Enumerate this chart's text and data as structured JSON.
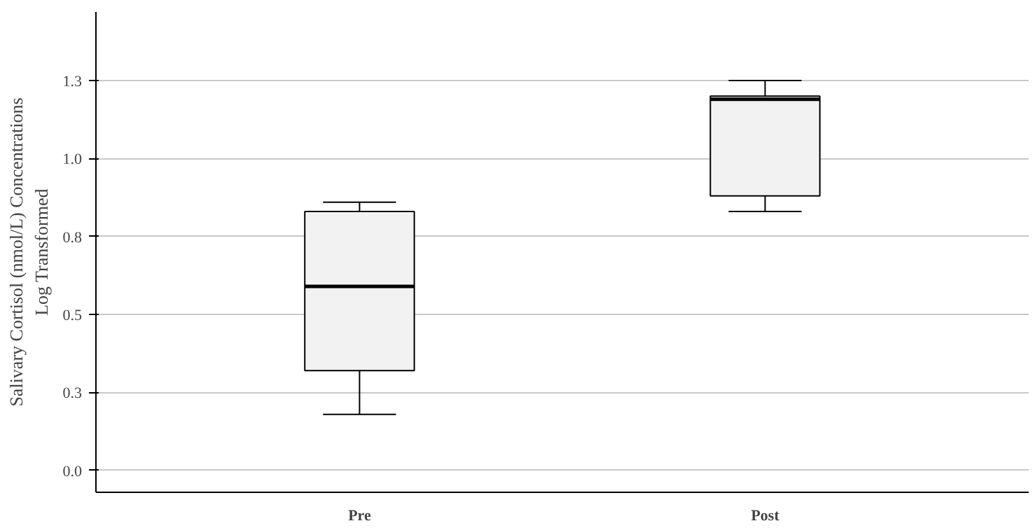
{
  "chart_data": {
    "type": "box",
    "ylabel": "Salivary Cortisol (nmol/L) Concentrations\nLog Transformed",
    "categories": [
      "Pre",
      "Post"
    ],
    "boxes": [
      {
        "low": 0.18,
        "q1": 0.32,
        "median": 0.59,
        "q3": 0.83,
        "high": 0.86
      },
      {
        "low": 0.83,
        "q1": 0.88,
        "median": 1.19,
        "q3": 1.2,
        "high": 1.25
      }
    ],
    "color": "#f2f2f2",
    "ylim": [
      -0.07,
      1.47
    ],
    "yticks": [
      {
        "value": 0,
        "label": "0.0"
      },
      {
        "value": 0.25,
        "label": "0.3"
      },
      {
        "value": 0.5,
        "label": "0.5"
      },
      {
        "value": 0.75,
        "label": "0.8"
      },
      {
        "value": 1.0,
        "label": "1.0"
      },
      {
        "value": 1.25,
        "label": "1.3"
      }
    ],
    "grid": "y"
  }
}
